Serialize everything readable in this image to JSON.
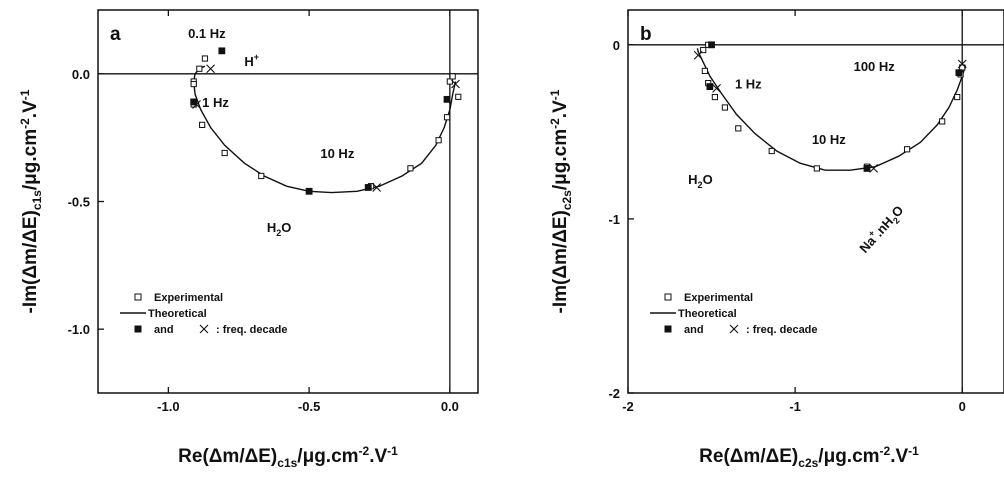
{
  "chart_data": [
    {
      "type": "scatter",
      "panel_label": "a",
      "xlim": [
        -1.25,
        0.1
      ],
      "ylim": [
        -1.25,
        0.25
      ],
      "xticks": [
        -1.0,
        -0.5,
        0.0
      ],
      "xtick_labels": [
        "-1.0",
        "-0.5",
        "0.0"
      ],
      "yticks": [
        0.0,
        -0.5,
        -1.0
      ],
      "ytick_labels": [
        "0.0",
        "-0.5",
        "-1.0"
      ],
      "xlabel": {
        "main": "Re(Δm/ΔE)",
        "sub": "c1s",
        "tail": "/μg.cm",
        "sup": "-2",
        "end": ".V",
        "sup2": "-1"
      },
      "ylabel": {
        "main": "-Im(Δm/ΔE)",
        "sub": "c1s",
        "tail": "/μg.cm",
        "sup": "-2",
        "end": ".V",
        "sup2": "-1"
      },
      "series": [
        {
          "name": "Experimental",
          "marker": "open-square",
          "x": [
            -0.91,
            -0.89,
            -0.87,
            -0.91,
            -0.91,
            -0.88,
            -0.8,
            -0.67,
            -0.5,
            -0.28,
            -0.14,
            -0.04,
            -0.01,
            -0.01,
            0.0,
            0.03,
            0.01
          ],
          "y": [
            -0.03,
            0.02,
            0.06,
            -0.04,
            -0.12,
            -0.2,
            -0.31,
            -0.4,
            -0.46,
            -0.44,
            -0.37,
            -0.26,
            -0.17,
            -0.1,
            -0.03,
            -0.09,
            -0.01
          ]
        },
        {
          "name": "Theoretical",
          "marker": "line",
          "x": [
            0.02,
            0.01,
            0.0,
            -0.02,
            -0.05,
            -0.1,
            -0.17,
            -0.25,
            -0.33,
            -0.42,
            -0.5,
            -0.58,
            -0.66,
            -0.73,
            -0.8,
            -0.85,
            -0.885,
            -0.905,
            -0.91,
            -0.905,
            -0.89,
            -0.87
          ],
          "y": [
            -0.03,
            -0.08,
            -0.14,
            -0.21,
            -0.28,
            -0.35,
            -0.4,
            -0.44,
            -0.46,
            -0.465,
            -0.46,
            -0.44,
            -0.4,
            -0.35,
            -0.28,
            -0.21,
            -0.14,
            -0.08,
            -0.03,
            0.0,
            0.02,
            0.03
          ]
        },
        {
          "name": "freq. decade (filled)",
          "marker": "filled-square",
          "x": [
            -0.81,
            -0.91,
            -0.5,
            -0.29,
            -0.01
          ],
          "y": [
            0.09,
            -0.11,
            -0.46,
            -0.445,
            -0.1
          ]
        },
        {
          "name": "freq. decade (cross)",
          "marker": "cross",
          "x": [
            -0.85,
            -0.9,
            -0.26,
            0.02
          ],
          "y": [
            0.02,
            -0.12,
            -0.445,
            -0.04
          ]
        }
      ],
      "annotations": [
        {
          "text": "0.1 Hz",
          "x": -0.93,
          "y": 0.14,
          "color": "#111111"
        },
        {
          "text": "H",
          "sup": "+",
          "x": -0.73,
          "y": 0.03,
          "color": "#111111"
        },
        {
          "text": "1 Hz",
          "x": -0.88,
          "y": -0.13,
          "color": "#111111"
        },
        {
          "text": "10 Hz",
          "x": -0.46,
          "y": -0.33,
          "color": "#111111"
        },
        {
          "text": "H",
          "sub": "2",
          "tail": "O",
          "x": -0.65,
          "y": -0.62,
          "color": "#33cc00"
        }
      ],
      "legend": {
        "position": "bottom-left",
        "entries": [
          {
            "marker": "open-square",
            "label": "Experimental"
          },
          {
            "marker": "line",
            "label": "Theoretical"
          },
          {
            "marker": "filled-square-and-cross",
            "label_pre": "and",
            "label": ": freq. decade"
          }
        ]
      }
    },
    {
      "type": "scatter",
      "panel_label": "b",
      "xlim": [
        -2.0,
        0.25
      ],
      "ylim": [
        -2.0,
        0.2
      ],
      "xticks": [
        -2,
        -1,
        0
      ],
      "xtick_labels": [
        "-2",
        "-1",
        "0"
      ],
      "yticks": [
        0,
        -1,
        -2
      ],
      "ytick_labels": [
        "0",
        "-1",
        "-2"
      ],
      "xlabel": {
        "main": "Re(Δm/ΔE)",
        "sub": "c2s",
        "tail": "/μg.cm",
        "sup": "-2",
        "end": ".V",
        "sup2": "-1"
      },
      "ylabel": {
        "main": "-Im(Δm/ΔE)",
        "sub": "c2s",
        "tail": "/μg.cm",
        "sup": "-2",
        "end": ".V",
        "sup2": "-1"
      },
      "series": [
        {
          "name": "Experimental",
          "marker": "open-square",
          "x": [
            -1.52,
            -1.55,
            -1.54,
            -1.52,
            -1.48,
            -1.42,
            -1.34,
            -1.14,
            -0.87,
            -0.57,
            -0.33,
            -0.12,
            -0.03,
            -0.01,
            0.0
          ],
          "y": [
            0.0,
            -0.03,
            -0.15,
            -0.22,
            -0.3,
            -0.36,
            -0.48,
            -0.61,
            -0.71,
            -0.7,
            -0.6,
            -0.44,
            -0.3,
            -0.17,
            -0.13
          ]
        },
        {
          "name": "Theoretical",
          "marker": "line",
          "x": [
            0.02,
            0.0,
            -0.03,
            -0.08,
            -0.15,
            -0.25,
            -0.38,
            -0.52,
            -0.67,
            -0.82,
            -0.97,
            -1.11,
            -1.24,
            -1.35,
            -1.44,
            -1.51,
            -1.55,
            -1.58,
            -1.585
          ],
          "y": [
            -0.12,
            -0.18,
            -0.26,
            -0.36,
            -0.46,
            -0.56,
            -0.64,
            -0.7,
            -0.72,
            -0.72,
            -0.68,
            -0.61,
            -0.51,
            -0.4,
            -0.28,
            -0.18,
            -0.1,
            -0.04,
            -0.02
          ]
        },
        {
          "name": "freq. decade (filled)",
          "marker": "filled-square",
          "x": [
            -1.5,
            -1.51,
            -0.57,
            -0.02
          ],
          "y": [
            0.0,
            -0.24,
            -0.71,
            -0.16
          ]
        },
        {
          "name": "freq. decade (cross)",
          "marker": "cross",
          "x": [
            -1.58,
            -1.47,
            -0.53,
            0.0
          ],
          "y": [
            -0.06,
            -0.25,
            -0.71,
            -0.11
          ]
        }
      ],
      "annotations": [
        {
          "text": "1 Hz",
          "x": -1.36,
          "y": -0.25,
          "color": "#111111"
        },
        {
          "text": "100 Hz",
          "x": -0.65,
          "y": -0.15,
          "color": "#111111"
        },
        {
          "text": "10 Hz",
          "x": -0.9,
          "y": -0.57,
          "color": "#111111"
        },
        {
          "text": "H",
          "sub": "2",
          "tail": "O",
          "x": -1.64,
          "y": -0.8,
          "color": "#33cc00"
        },
        {
          "text": "Na",
          "sup": "+",
          "tail2": ".nH",
          "sub": "2",
          "tail": "O",
          "x": -0.58,
          "y": -1.2,
          "color": "#ff1a1a",
          "rotate": -48
        }
      ],
      "legend": {
        "position": "bottom-left",
        "entries": [
          {
            "marker": "open-square",
            "label": "Experimental"
          },
          {
            "marker": "line",
            "label": "Theoretical"
          },
          {
            "marker": "filled-square-and-cross",
            "label_pre": "and",
            "label": ": freq. decade"
          }
        ]
      }
    }
  ]
}
